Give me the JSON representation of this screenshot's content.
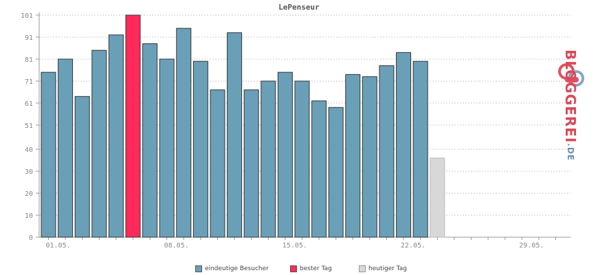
{
  "chart_data": {
    "type": "bar",
    "title": "LePenseur",
    "categories": [
      "01.05.",
      "02.05.",
      "03.05.",
      "04.05.",
      "05.05.",
      "06.05.",
      "07.05.",
      "08.05.",
      "09.05.",
      "10.05.",
      "11.05.",
      "12.05.",
      "13.05.",
      "14.05.",
      "15.05.",
      "16.05.",
      "17.05.",
      "18.05.",
      "19.05.",
      "20.05.",
      "21.05.",
      "22.05.",
      "23.05.",
      "24.05.",
      "25.05.",
      "26.05.",
      "27.05.",
      "28.05.",
      "29.05.",
      "30.05.",
      "31.05."
    ],
    "x_tick_labels": [
      "01.05.",
      "08.05.",
      "15.05.",
      "22.05.",
      "29.05."
    ],
    "y_tick_labels": [
      "0",
      "10",
      "20",
      "30",
      "40",
      "51",
      "61",
      "71",
      "81",
      "91",
      "101"
    ],
    "ylim": [
      0,
      101
    ],
    "series": [
      {
        "name": "eindeutige Besucher",
        "color": "#6a9fb8",
        "values": [
          75,
          81,
          64,
          85,
          92,
          null,
          88,
          81,
          95,
          80,
          67,
          93,
          67,
          71,
          75,
          71,
          62,
          59,
          74,
          73,
          78,
          84,
          80,
          null,
          null,
          null,
          null,
          null,
          null,
          null,
          null
        ]
      },
      {
        "name": "bester Tag",
        "color": "#ff2a5a",
        "values": [
          null,
          null,
          null,
          null,
          null,
          101,
          null,
          null,
          null,
          null,
          null,
          null,
          null,
          null,
          null,
          null,
          null,
          null,
          null,
          null,
          null,
          null,
          null,
          null,
          null,
          null,
          null,
          null,
          null,
          null,
          null
        ]
      },
      {
        "name": "heutiger Tag",
        "color": "#d8d8d8",
        "values": [
          null,
          null,
          null,
          null,
          null,
          null,
          null,
          null,
          null,
          null,
          null,
          null,
          null,
          null,
          null,
          null,
          null,
          null,
          null,
          null,
          null,
          null,
          null,
          36,
          null,
          null,
          null,
          null,
          null,
          null,
          null
        ]
      }
    ],
    "grid": true,
    "legend_position": "bottom"
  },
  "logo": {
    "text": "BLOGGEREI",
    "suffix": ".DE"
  }
}
